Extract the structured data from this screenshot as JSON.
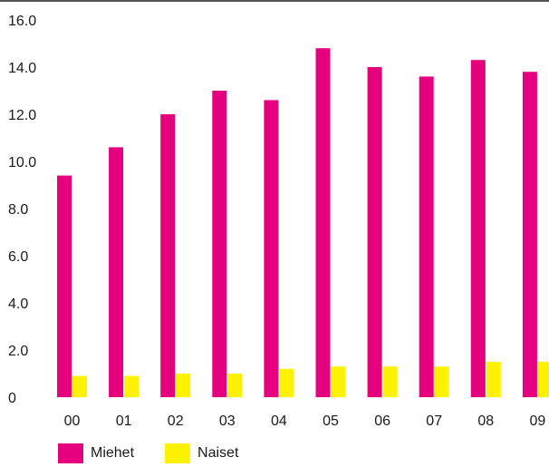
{
  "chart_data": {
    "type": "bar",
    "title": "",
    "xlabel": "",
    "ylabel": "",
    "categories": [
      "00",
      "01",
      "02",
      "03",
      "04",
      "05",
      "06",
      "07",
      "08",
      "09"
    ],
    "series": [
      {
        "name": "Miehet",
        "color": "#e5007d",
        "values": [
          9.4,
          10.6,
          12.0,
          13.0,
          12.6,
          14.8,
          14.0,
          13.6,
          14.3,
          13.8
        ]
      },
      {
        "name": "Naiset",
        "color": "#fff200",
        "values": [
          0.9,
          0.9,
          1.0,
          1.0,
          1.2,
          1.3,
          1.3,
          1.3,
          1.5,
          1.5
        ]
      }
    ],
    "ylim": [
      0,
      16
    ],
    "yticks": [
      "0",
      "2.0",
      "4.0",
      "6.0",
      "8.0",
      "10.0",
      "12.0",
      "14.0",
      "16.0"
    ],
    "grid": false,
    "legend_position": "bottom-left"
  }
}
